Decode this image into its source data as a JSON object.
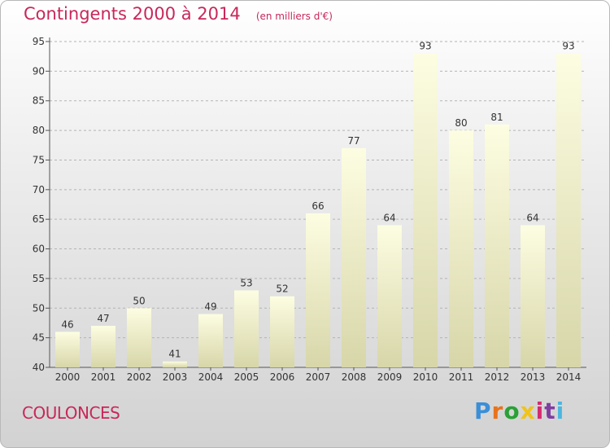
{
  "header": {
    "title": "Contingents 2000 à 2014",
    "subtitle": "(en milliers d'€)"
  },
  "footer": {
    "place": "COULONCES",
    "brand": "Proxiti",
    "brand_colors": [
      "#3a8fd8",
      "#e8731c",
      "#2aa036",
      "#f0c419",
      "#d62a6f",
      "#7f3ea0",
      "#4bb6e0"
    ]
  },
  "colors": {
    "title": "#c8285a",
    "bar_top": "#fdfde2",
    "bar_bottom": "#d7d6a9",
    "grid": "#b4b4b4",
    "axis_text": "#333333"
  },
  "chart_data": {
    "type": "bar",
    "title": "Contingents 2000 à 2014",
    "subtitle": "(en milliers d'€)",
    "categories": [
      "2000",
      "2001",
      "2002",
      "2003",
      "2004",
      "2005",
      "2006",
      "2007",
      "2008",
      "2009",
      "2010",
      "2011",
      "2012",
      "2013",
      "2014"
    ],
    "values": [
      46,
      47,
      50,
      41,
      49,
      53,
      52,
      66,
      77,
      64,
      93,
      80,
      81,
      64,
      93
    ],
    "ylim": [
      40,
      95
    ],
    "yticks": [
      40,
      45,
      50,
      55,
      60,
      65,
      70,
      75,
      80,
      85,
      90,
      95
    ],
    "grid": true,
    "data_labels": true
  }
}
